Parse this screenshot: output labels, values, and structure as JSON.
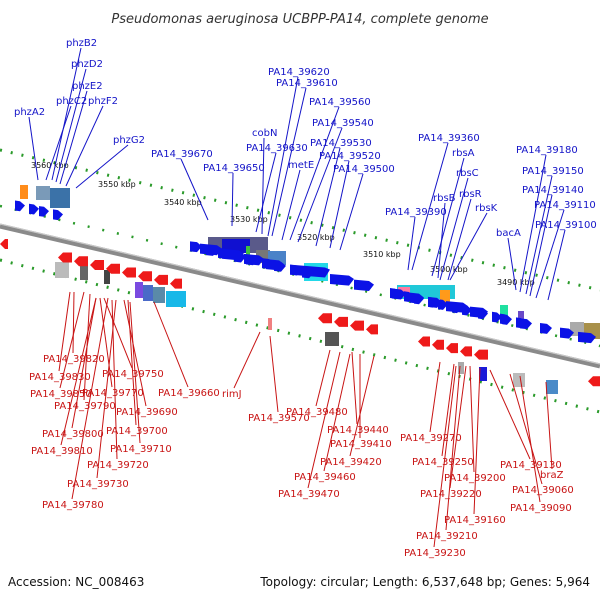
{
  "title": "Pseudomonas aeruginosa UCBPP-PA14, complete genome",
  "footer": {
    "accession": "Accession: NC_008463",
    "summary": "Topology: circular; Length: 6,537,648 bp; Genes: 5,964"
  },
  "colors": {
    "top_label": "#1414c8",
    "bottom_label": "#c81414",
    "forward_arrow": "#0b12e6",
    "reverse_arrow": "#ee1a1a",
    "backbone": "#8a8a8a",
    "tick_green": "#2a9a2a"
  },
  "ticks": [
    "3560 kbp",
    "3550 kbp",
    "3540 kbp",
    "3530 kbp",
    "3520 kbp",
    "3510 kbp",
    "3500 kbp",
    "3490 kbp"
  ],
  "top_genes": [
    "phzB2",
    "phzD2",
    "phzE2",
    "phzC2",
    "phzF2",
    "phzA2",
    "phzG2",
    "PA14_39670",
    "PA14_39650",
    "PA14_39630",
    "cobN",
    "PA14_39620",
    "PA14_39610",
    "metE",
    "PA14_39560",
    "PA14_39540",
    "PA14_39530",
    "PA14_39520",
    "PA14_39500",
    "PA14_39360",
    "rbsA",
    "rbsC",
    "rbsB",
    "rbsR",
    "PA14_39390",
    "rbsK",
    "PA14_39180",
    "PA14_39150",
    "PA14_39140",
    "PA14_39110",
    "PA14_39100",
    "bacA"
  ],
  "bottom_genes": [
    "PA14_39820",
    "PA14_39830",
    "PA14_39850",
    "PA14_39790",
    "PA14_39770",
    "PA14_39750",
    "PA14_39660",
    "PA14_39690",
    "PA14_39800",
    "PA14_39700",
    "PA14_39810",
    "PA14_39710",
    "PA14_39720",
    "PA14_39730",
    "PA14_39780",
    "rimJ",
    "PA14_39570",
    "PA14_39480",
    "PA14_39440",
    "PA14_39410",
    "PA14_39420",
    "PA14_39460",
    "PA14_39470",
    "PA14_39270",
    "PA14_39250",
    "PA14_39200",
    "PA14_39220",
    "PA14_39130",
    "PA14_39060",
    "braZ",
    "PA14_39090",
    "PA14_39160",
    "PA14_39210",
    "PA14_39230"
  ]
}
